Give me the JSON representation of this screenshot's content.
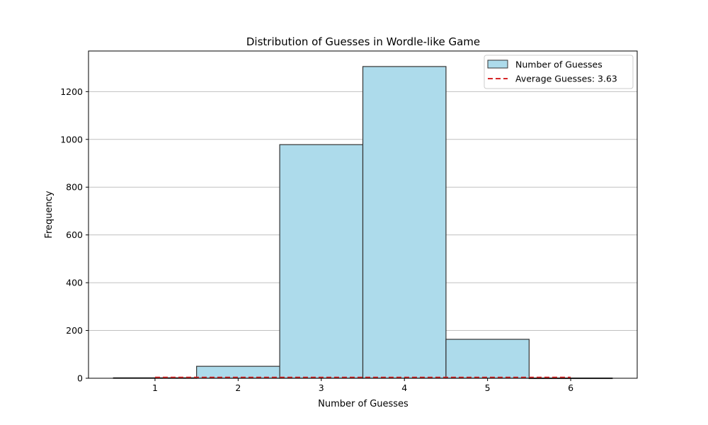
{
  "chart_data": {
    "type": "bar",
    "title": "Distribution of Guesses in Wordle-like Game",
    "xlabel": "Number of Guesses",
    "ylabel": "Frequency",
    "xlim": [
      0.2,
      6.8
    ],
    "ylim": [
      0,
      1370
    ],
    "xticks": [
      1,
      2,
      3,
      4,
      5,
      6
    ],
    "yticks": [
      0,
      200,
      400,
      600,
      800,
      1000,
      1200
    ],
    "grid": "y",
    "bins": [
      {
        "start": 0.5,
        "end": 1.5,
        "value": 2
      },
      {
        "start": 1.5,
        "end": 2.5,
        "value": 50
      },
      {
        "start": 2.5,
        "end": 3.5,
        "value": 978
      },
      {
        "start": 3.5,
        "end": 4.5,
        "value": 1305
      },
      {
        "start": 4.5,
        "end": 5.5,
        "value": 163
      },
      {
        "start": 5.5,
        "end": 6.5,
        "value": 1
      }
    ],
    "average_line": {
      "value": 3.63,
      "x_range": [
        1,
        6
      ]
    },
    "legend": {
      "position": "top-right",
      "entries": [
        {
          "label": "Number of Guesses",
          "kind": "bar"
        },
        {
          "label": "Average Guesses: 3.63",
          "kind": "dashed-line"
        }
      ]
    },
    "colors": {
      "bar_fill": "#ADDBEB",
      "bar_edge": "#333333",
      "average_line": "#D62728",
      "grid": "#C0C0C0"
    }
  }
}
